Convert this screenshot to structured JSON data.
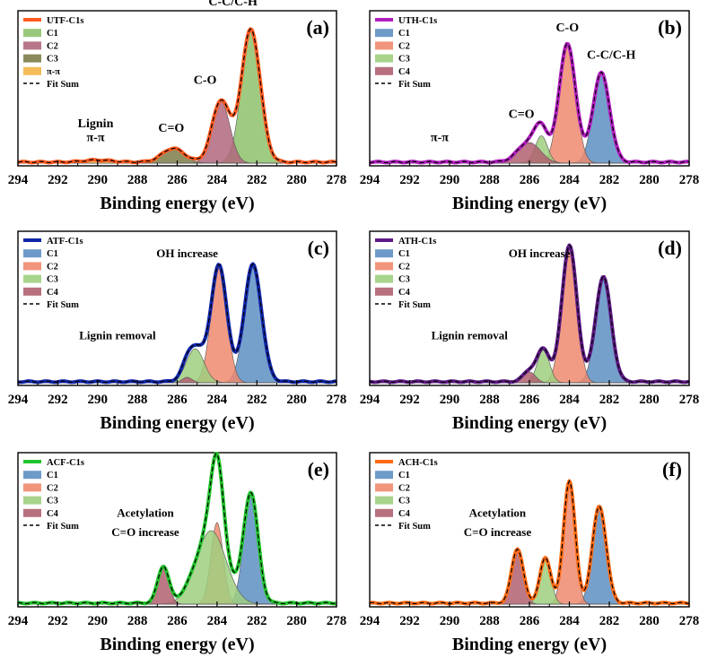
{
  "chart_data": [
    {
      "id": "a",
      "type": "area",
      "panel_label": "(a)",
      "xlabel": "Binding energy (eV)",
      "ylabel": "",
      "xlim": [
        294,
        278
      ],
      "ylim": [
        0,
        1
      ],
      "ticks": [
        294,
        292,
        290,
        288,
        286,
        284,
        282,
        280,
        278
      ],
      "tick_labels": [
        "294",
        "292",
        "290",
        "288",
        "286",
        "284",
        "282",
        "280",
        "278"
      ],
      "envelope": {
        "name": "UTF-C1s",
        "color": "#ff5a1f",
        "width": 4
      },
      "components": [
        {
          "name": "C1",
          "center": 282.3,
          "height": 0.97,
          "width": 0.85,
          "color": "#8dc26b"
        },
        {
          "name": "C2",
          "center": 283.8,
          "height": 0.45,
          "width": 0.8,
          "color": "#b0677c"
        },
        {
          "name": "C3",
          "center": 286.2,
          "height": 0.1,
          "width": 1.0,
          "color": "#7d7c49"
        },
        {
          "name": "π-π",
          "center": 290.0,
          "height": 0.015,
          "width": 1.2,
          "color": "#f5b547"
        }
      ],
      "legend": [
        "UTF-C1s",
        "C1",
        "C2",
        "C3",
        "π-π",
        "Fit Sum"
      ],
      "annotations": [
        {
          "text": "C-C/C-H",
          "x": 283.2,
          "y": 1.15
        },
        {
          "text": "C-O",
          "x": 284.6,
          "y": 0.58
        },
        {
          "text": "C=O",
          "x": 286.3,
          "y": 0.23
        },
        {
          "text": "Lignin",
          "x": 290.1,
          "y": 0.26
        },
        {
          "text": "π-π",
          "x": 290.1,
          "y": 0.16
        }
      ]
    },
    {
      "id": "b",
      "type": "area",
      "panel_label": "(b)",
      "xlabel": "Binding energy (eV)",
      "ylabel": "",
      "xlim": [
        294,
        278
      ],
      "ylim": [
        0,
        1
      ],
      "ticks": [
        294,
        292,
        290,
        288,
        286,
        284,
        282,
        280,
        278
      ],
      "tick_labels": [
        "294",
        "292",
        "290",
        "288",
        "286",
        "284",
        "282",
        "280",
        "278"
      ],
      "envelope": {
        "name": "UTH-C1s",
        "color": "#b21ec0",
        "width": 4
      },
      "components": [
        {
          "name": "C1",
          "center": 282.4,
          "height": 0.65,
          "width": 0.75,
          "color": "#5e8fc3"
        },
        {
          "name": "C2",
          "center": 284.1,
          "height": 0.86,
          "width": 0.75,
          "color": "#ef8a6e"
        },
        {
          "name": "C3",
          "center": 285.4,
          "height": 0.2,
          "width": 0.55,
          "color": "#9fcf7f"
        },
        {
          "name": "C4",
          "center": 286.0,
          "height": 0.15,
          "width": 1.0,
          "color": "#b06070"
        }
      ],
      "legend": [
        "UTH-C1s",
        "C1",
        "C2",
        "C3",
        "C4",
        "Fit Sum"
      ],
      "annotations": [
        {
          "text": "C-O",
          "x": 284.1,
          "y": 0.96
        },
        {
          "text": "C-C/C-H",
          "x": 281.9,
          "y": 0.76
        },
        {
          "text": "C=O",
          "x": 286.4,
          "y": 0.33
        },
        {
          "text": "π-π",
          "x": 290.5,
          "y": 0.16
        }
      ]
    },
    {
      "id": "c",
      "type": "area",
      "panel_label": "(c)",
      "xlabel": "Binding energy (eV)",
      "ylabel": "",
      "xlim": [
        294,
        278
      ],
      "ylim": [
        0,
        1
      ],
      "ticks": [
        294,
        292,
        290,
        288,
        286,
        284,
        282,
        280,
        278
      ],
      "tick_labels": [
        "294",
        "292",
        "290",
        "288",
        "286",
        "284",
        "282",
        "280",
        "278"
      ],
      "envelope": {
        "name": "ATF-C1s",
        "color": "#1026a8",
        "width": 4
      },
      "components": [
        {
          "name": "C1",
          "center": 282.2,
          "height": 0.86,
          "width": 0.78,
          "color": "#5e8fc3"
        },
        {
          "name": "C2",
          "center": 283.9,
          "height": 0.85,
          "width": 0.72,
          "color": "#ef8a6e"
        },
        {
          "name": "C3",
          "center": 285.1,
          "height": 0.25,
          "width": 0.8,
          "color": "#9fcf7f"
        },
        {
          "name": "C4",
          "center": 285.5,
          "height": 0.04,
          "width": 0.45,
          "color": "#b06070"
        }
      ],
      "legend": [
        "ATF-C1s",
        "C1",
        "C2",
        "C3",
        "C4",
        "Fit Sum"
      ],
      "annotations": [
        {
          "text": "OH increase",
          "x": 285.5,
          "y": 0.92
        },
        {
          "text": "Lignin removal",
          "x": 289.0,
          "y": 0.32
        }
      ]
    },
    {
      "id": "d",
      "type": "area",
      "panel_label": "(d)",
      "xlabel": "Binding energy (eV)",
      "ylabel": "",
      "xlim": [
        294,
        278
      ],
      "ylim": [
        0,
        1
      ],
      "ticks": [
        294,
        292,
        290,
        288,
        286,
        284,
        282,
        280,
        278
      ],
      "tick_labels": [
        "294",
        "292",
        "290",
        "288",
        "286",
        "284",
        "282",
        "280",
        "278"
      ],
      "envelope": {
        "name": "ATH-C1s",
        "color": "#5e1a86",
        "width": 4
      },
      "components": [
        {
          "name": "C1",
          "center": 282.3,
          "height": 0.77,
          "width": 0.7,
          "color": "#5e8fc3"
        },
        {
          "name": "C2",
          "center": 284.0,
          "height": 1.0,
          "width": 0.68,
          "color": "#ef8a6e"
        },
        {
          "name": "C3",
          "center": 285.3,
          "height": 0.24,
          "width": 0.55,
          "color": "#9fcf7f"
        },
        {
          "name": "C4",
          "center": 286.0,
          "height": 0.08,
          "width": 0.55,
          "color": "#b06070"
        }
      ],
      "legend": [
        "ATH-C1s",
        "C1",
        "C2",
        "C3",
        "C4",
        "Fit Sum"
      ],
      "annotations": [
        {
          "text": "OH increase",
          "x": 285.5,
          "y": 0.92
        },
        {
          "text": "Lignin removal",
          "x": 289.0,
          "y": 0.32
        }
      ]
    },
    {
      "id": "e",
      "type": "area",
      "panel_label": "(e)",
      "xlabel": "Binding energy (eV)",
      "ylabel": "",
      "xlim": [
        294,
        278
      ],
      "ylim": [
        0,
        1
      ],
      "ticks": [
        294,
        292,
        290,
        288,
        286,
        284,
        282,
        280,
        278
      ],
      "tick_labels": [
        "294",
        "292",
        "290",
        "288",
        "286",
        "284",
        "282",
        "280",
        "278"
      ],
      "envelope": {
        "name": "ACF-C1s",
        "color": "#22c32c",
        "width": 4
      },
      "components": [
        {
          "name": "C1",
          "center": 282.3,
          "height": 0.8,
          "width": 0.65,
          "color": "#5e8fc3"
        },
        {
          "name": "C2",
          "center": 284.0,
          "height": 0.6,
          "width": 0.55,
          "color": "#ef8a6e"
        },
        {
          "name": "C3",
          "center": 284.3,
          "height": 0.54,
          "width": 1.35,
          "color": "#9fcf7f"
        },
        {
          "name": "C4",
          "center": 286.7,
          "height": 0.27,
          "width": 0.5,
          "color": "#b06070"
        }
      ],
      "legend": [
        "ACF-C1s",
        "C1",
        "C2",
        "C3",
        "C4",
        "Fit Sum"
      ],
      "annotations": [
        {
          "text": "Acetylation",
          "x": 287.6,
          "y": 0.64
        },
        {
          "text": "C=O increase",
          "x": 287.6,
          "y": 0.5
        }
      ]
    },
    {
      "id": "f",
      "type": "area",
      "panel_label": "(f)",
      "xlabel": "Binding energy (eV)",
      "ylabel": "",
      "xlim": [
        294,
        278
      ],
      "ylim": [
        0,
        1
      ],
      "ticks": [
        294,
        292,
        290,
        288,
        286,
        284,
        282,
        280,
        278
      ],
      "tick_labels": [
        "294",
        "292",
        "290",
        "288",
        "286",
        "284",
        "282",
        "280",
        "278"
      ],
      "envelope": {
        "name": "ACH-C1s",
        "color": "#ff6a12",
        "width": 4
      },
      "components": [
        {
          "name": "C1",
          "center": 282.5,
          "height": 0.71,
          "width": 0.62,
          "color": "#5e8fc3"
        },
        {
          "name": "C2",
          "center": 284.0,
          "height": 0.9,
          "width": 0.52,
          "color": "#ef8a6e"
        },
        {
          "name": "C3",
          "center": 285.2,
          "height": 0.33,
          "width": 0.5,
          "color": "#9fcf7f"
        },
        {
          "name": "C4",
          "center": 286.6,
          "height": 0.4,
          "width": 0.52,
          "color": "#b06070"
        }
      ],
      "legend": [
        "ACH-C1s",
        "C1",
        "C2",
        "C3",
        "C4",
        "Fit Sum"
      ],
      "annotations": [
        {
          "text": "Acetylation",
          "x": 287.6,
          "y": 0.64
        },
        {
          "text": "C=O increase",
          "x": 287.6,
          "y": 0.5
        }
      ]
    }
  ]
}
